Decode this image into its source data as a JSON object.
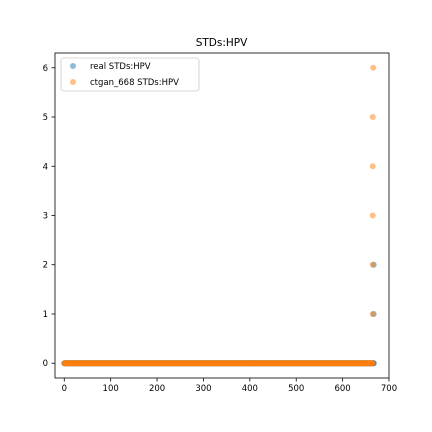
{
  "chart_data": {
    "type": "scatter",
    "title": "STDs:HPV",
    "xlabel": "",
    "ylabel": "",
    "xlim": [
      -20,
      700
    ],
    "ylim": [
      -0.3,
      6.3
    ],
    "xticks": [
      0,
      100,
      200,
      300,
      400,
      500,
      600,
      700
    ],
    "yticks": [
      0,
      1,
      2,
      3,
      4,
      5,
      6
    ],
    "grid": false,
    "legend_position": "top-left",
    "series": [
      {
        "name": "real STDs:HPV",
        "color": "#1f77b4",
        "alpha": 0.5,
        "zero_run": {
          "x_start": 0,
          "x_end": 667,
          "y": 0
        },
        "points": [
          [
            667,
            1
          ],
          [
            667,
            2
          ],
          [
            667,
            0
          ]
        ]
      },
      {
        "name": "ctgan_668 STDs:HPV",
        "color": "#ff7f0e",
        "alpha": 0.5,
        "zero_run": {
          "x_start": 0,
          "x_end": 665,
          "y": 0
        },
        "points": [
          [
            665,
            1
          ],
          [
            665,
            2
          ],
          [
            665,
            3
          ],
          [
            665,
            4
          ],
          [
            665,
            5
          ],
          [
            666,
            6
          ]
        ]
      }
    ]
  }
}
